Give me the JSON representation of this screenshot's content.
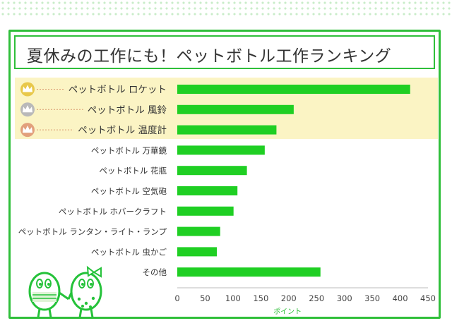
{
  "title": "夏休みの工作にも！ペットボトル工作ランキング",
  "colors": {
    "bar": "#1fcf23",
    "frame": "#2fbf3a",
    "highlight": "#fbf4c4",
    "gold": "#e8c84a",
    "silver": "#b9b9b9",
    "bronze": "#e2a07c",
    "mascot": "#25c23a"
  },
  "chart_data": {
    "type": "bar",
    "orientation": "horizontal",
    "title": "夏休みの工作にも！ペットボトル工作ランキング",
    "xlabel": "ポイント",
    "ylabel": "",
    "xlim": [
      0,
      450
    ],
    "x_ticks": [
      "0",
      "50",
      "100",
      "150",
      "200",
      "250",
      "300",
      "350",
      "400",
      "450"
    ],
    "grid": false,
    "categories": [
      "ペットボトル ロケット",
      "ペットボトル 風鈴",
      "ペットボトル 温度計",
      "ペットボトル 万華鏡",
      "ペットボトル 花瓶",
      "ペットボトル 空気砲",
      "ペットボトル ホバークラフト",
      "ペットボトル ランタン・ライト・ランプ",
      "ペットボトル 虫かご",
      "その他"
    ],
    "values": [
      418,
      209,
      178,
      157,
      125,
      108,
      101,
      77,
      71,
      257
    ],
    "top3_icons": [
      "gold-crown-icon",
      "silver-crown-icon",
      "bronze-crown-icon"
    ]
  }
}
